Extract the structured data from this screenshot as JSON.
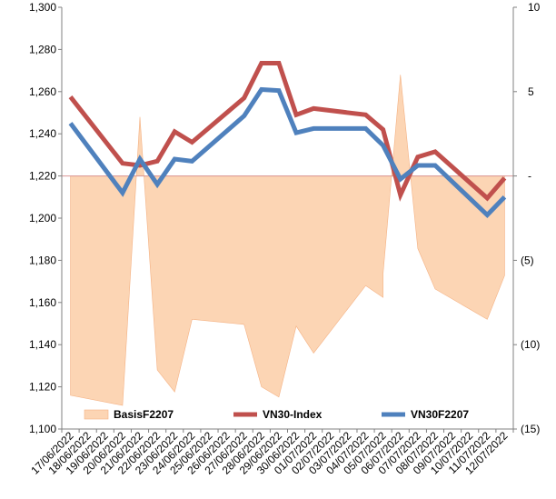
{
  "chart_data": {
    "type": "line",
    "x": [
      "17/06/2022",
      "18/06/2022",
      "19/06/2022",
      "20/06/2022",
      "21/06/2022",
      "22/06/2022",
      "23/06/2022",
      "24/06/2022",
      "25/06/2022",
      "26/06/2022",
      "27/06/2022",
      "28/06/2022",
      "29/06/2022",
      "30/06/2022",
      "01/07/2022",
      "02/07/2022",
      "03/07/2022",
      "04/07/2022",
      "05/07/2022",
      "06/07/2022",
      "07/07/2022",
      "08/07/2022",
      "09/07/2022",
      "10/07/2022",
      "11/07/2022",
      "12/07/2022"
    ],
    "left_axis": {
      "ylim": [
        1100,
        1300
      ],
      "ticks": [
        "1,100",
        "1,120",
        "1,140",
        "1,160",
        "1,180",
        "1,200",
        "1,220",
        "1,240",
        "1,260",
        "1,280",
        "1,300"
      ]
    },
    "right_axis": {
      "ylim": [
        -15,
        10
      ],
      "ticks": [
        "(15)",
        "(10)",
        "(5)",
        "-",
        "5",
        "10"
      ]
    },
    "series": [
      {
        "name": "BasisF2207",
        "type": "area",
        "axis": "right",
        "color": "#fcd5b4",
        "points": [
          [
            "17/06/2022",
            -13.0
          ],
          [
            "20/06/2022",
            -13.6
          ],
          [
            "21/06/2022",
            3.5
          ],
          [
            "22/06/2022",
            -11.5
          ],
          [
            "23/06/2022",
            -12.8
          ],
          [
            "24/06/2022",
            -8.5
          ],
          [
            "27/06/2022",
            -8.8
          ],
          [
            "28/06/2022",
            -12.5
          ],
          [
            "29/06/2022",
            -13.1
          ],
          [
            "30/06/2022",
            -8.9
          ],
          [
            "01/07/2022",
            -10.5
          ],
          [
            "04/07/2022",
            -6.5
          ],
          [
            "05/07/2022",
            -7.2
          ],
          [
            "05/07/2022",
            -5.8
          ],
          [
            "06/07/2022",
            6.0
          ],
          [
            "07/07/2022",
            -4.3
          ],
          [
            "08/07/2022",
            -6.7
          ],
          [
            "11/07/2022",
            -8.5
          ],
          [
            "12/07/2022",
            -5.9
          ]
        ]
      },
      {
        "name": "VN30-Index",
        "type": "line",
        "axis": "left",
        "color": "#c0504d",
        "points": [
          [
            "17/06/2022",
            1257.5
          ],
          [
            "20/06/2022",
            1226
          ],
          [
            "21/06/2022",
            1225
          ],
          [
            "22/06/2022",
            1227
          ],
          [
            "23/06/2022",
            1241
          ],
          [
            "24/06/2022",
            1236
          ],
          [
            "27/06/2022",
            1257
          ],
          [
            "28/06/2022",
            1273.5
          ],
          [
            "29/06/2022",
            1273.5
          ],
          [
            "30/06/2022",
            1249
          ],
          [
            "01/07/2022",
            1252
          ],
          [
            "04/07/2022",
            1249
          ],
          [
            "05/07/2022",
            1242
          ],
          [
            "06/07/2022",
            1211
          ],
          [
            "07/07/2022",
            1229
          ],
          [
            "08/07/2022",
            1231.5
          ],
          [
            "11/07/2022",
            1209.5
          ],
          [
            "12/07/2022",
            1219
          ]
        ]
      },
      {
        "name": "VN30F2207",
        "type": "line",
        "axis": "left",
        "color": "#4f81bd",
        "points": [
          [
            "17/06/2022",
            1245
          ],
          [
            "20/06/2022",
            1212
          ],
          [
            "21/06/2022",
            1228
          ],
          [
            "22/06/2022",
            1216
          ],
          [
            "23/06/2022",
            1228
          ],
          [
            "24/06/2022",
            1227
          ],
          [
            "27/06/2022",
            1248.5
          ],
          [
            "28/06/2022",
            1261
          ],
          [
            "29/06/2022",
            1260.5
          ],
          [
            "30/06/2022",
            1240.5
          ],
          [
            "01/07/2022",
            1242.5
          ],
          [
            "04/07/2022",
            1242.5
          ],
          [
            "05/07/2022",
            1234.5
          ],
          [
            "06/07/2022",
            1218.5
          ],
          [
            "07/07/2022",
            1225
          ],
          [
            "08/07/2022",
            1225
          ],
          [
            "11/07/2022",
            1201.5
          ],
          [
            "12/07/2022",
            1210
          ]
        ]
      }
    ],
    "legend": {
      "placement": "bottom",
      "entries": [
        "BasisF2207",
        "VN30-Index",
        "VN30F2207"
      ]
    },
    "grid": false
  }
}
